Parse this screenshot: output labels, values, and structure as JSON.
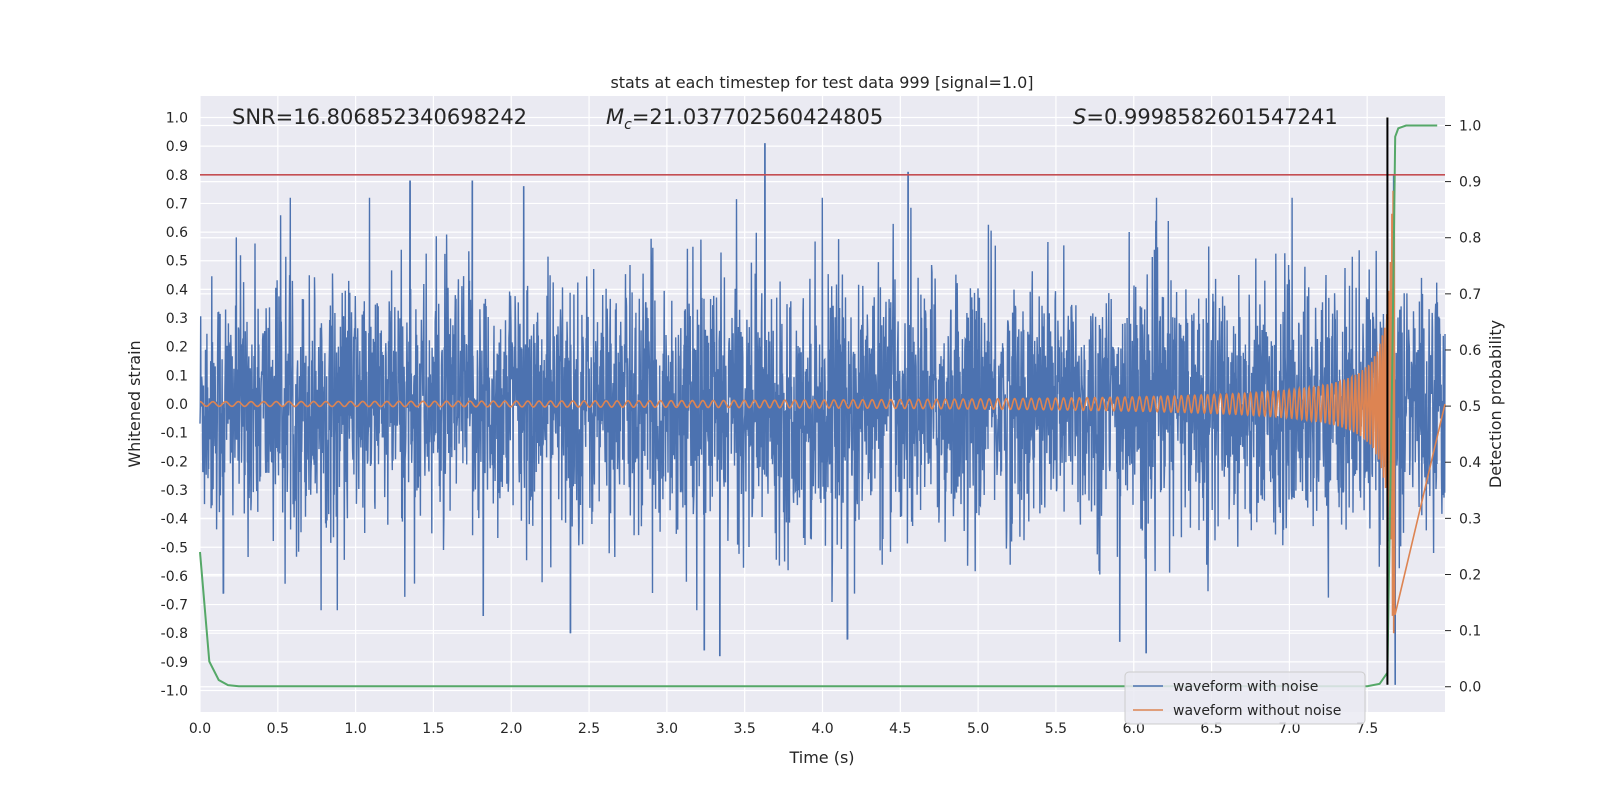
{
  "chart_data": {
    "type": "line",
    "title": "stats at each timestep for test data 999 [signal=1.0]",
    "xlabel": "Time (s)",
    "ylabel": "Whitened strain",
    "y2label": "Detection probability",
    "xlim": [
      0.0,
      8.0
    ],
    "ylim": [
      -1.075,
      1.075
    ],
    "y2lim": [
      -0.045,
      1.0525
    ],
    "xticks": [
      0.0,
      0.5,
      1.0,
      1.5,
      2.0,
      2.5,
      3.0,
      3.5,
      4.0,
      4.5,
      5.0,
      5.5,
      6.0,
      6.5,
      7.0,
      7.5
    ],
    "xtick_labels": [
      "0.0",
      "0.5",
      "1.0",
      "1.5",
      "2.0",
      "2.5",
      "3.0",
      "3.5",
      "4.0",
      "4.5",
      "5.0",
      "5.5",
      "6.0",
      "6.5",
      "7.0",
      "7.5"
    ],
    "yticks": [
      1.0,
      0.9,
      0.8,
      0.7,
      0.6,
      0.5,
      0.4,
      0.3,
      0.2,
      0.1,
      0.0,
      -0.1,
      -0.2,
      -0.3,
      -0.4,
      -0.5,
      -0.6,
      -0.7,
      -0.8,
      -0.9,
      -1.0
    ],
    "ytick_labels": [
      "1.0",
      "0.9",
      "0.8",
      "0.7",
      "0.6",
      "0.5",
      "0.4",
      "0.3",
      "0.2",
      "0.1",
      "0.0",
      "-0.1",
      "-0.2",
      "-0.3",
      "-0.4",
      "-0.5",
      "-0.6",
      "-0.7",
      "-0.8",
      "-0.9",
      "-1.0"
    ],
    "y2ticks": [
      1.0,
      0.9,
      0.8,
      0.7,
      0.6,
      0.5,
      0.4,
      0.3,
      0.2,
      0.1,
      0.0
    ],
    "y2tick_labels": [
      "1.0",
      "0.9",
      "0.8",
      "0.7",
      "0.6",
      "0.5",
      "0.4",
      "0.3",
      "0.2",
      "0.1",
      "0.0"
    ],
    "annotations": {
      "snr": "SNR=16.806852340698242",
      "mc_symbol": "M",
      "mc_sub": "c",
      "mc_value": "=21.037702560424805",
      "s_symbol": "S",
      "s_value": "=0.9998582601547241"
    },
    "threshold_line": {
      "y": 0.8,
      "color": "#c44e52"
    },
    "merger_time_line": {
      "x": 7.63,
      "color": "#000000"
    },
    "legend": {
      "location": "lower-right",
      "entries": [
        "waveform with noise",
        "waveform without noise"
      ]
    },
    "series": [
      {
        "name": "waveform with noise",
        "axis": "left",
        "color": "#4c72b0",
        "kind": "noise",
        "typical_envelope": [
          -0.4,
          0.4
        ],
        "peaks": [
          {
            "t": 1.35,
            "v": 0.78
          },
          {
            "t": 1.75,
            "v": 0.78
          },
          {
            "t": 2.08,
            "v": 0.76
          },
          {
            "t": 3.63,
            "v": 0.91
          },
          {
            "t": 4.55,
            "v": 0.81
          },
          {
            "t": 7.67,
            "v": 0.8
          },
          {
            "t": 0.15,
            "v": -0.66
          },
          {
            "t": 1.82,
            "v": -0.74
          },
          {
            "t": 2.38,
            "v": -0.8
          },
          {
            "t": 3.24,
            "v": -0.86
          },
          {
            "t": 3.34,
            "v": -0.88
          },
          {
            "t": 4.16,
            "v": -0.82
          },
          {
            "t": 5.91,
            "v": -0.83
          },
          {
            "t": 6.08,
            "v": -0.87
          },
          {
            "t": 7.68,
            "v": -0.98
          }
        ]
      },
      {
        "name": "waveform without noise",
        "axis": "left",
        "color": "#dd8452",
        "kind": "chirp",
        "merger_time": 7.68,
        "initial_amplitude": 0.008,
        "peak_amplitude": 0.82
      },
      {
        "name": "detection probability",
        "axis": "right",
        "color": "#55a868",
        "x": [
          0.0,
          0.06,
          0.12,
          0.18,
          0.25,
          1.0,
          4.0,
          7.5,
          7.58,
          7.63,
          7.66,
          7.68,
          7.7,
          7.75,
          7.8,
          7.95
        ],
        "values": [
          0.24,
          0.045,
          0.012,
          0.003,
          0.001,
          0.001,
          0.001,
          0.001,
          0.005,
          0.025,
          0.55,
          0.98,
          0.995,
          1.0,
          1.0,
          1.0
        ]
      }
    ]
  }
}
